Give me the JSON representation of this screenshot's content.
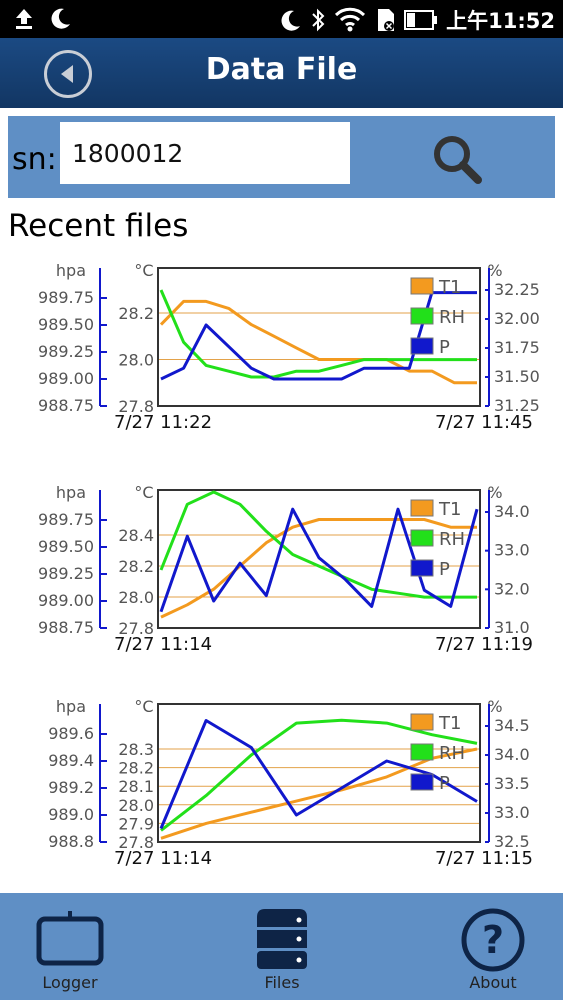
{
  "status_bar": {
    "time": "上午11:52"
  },
  "header": {
    "title": "Data File"
  },
  "search": {
    "label": "sn:",
    "value": "1800012"
  },
  "recent": {
    "title": "Recent files"
  },
  "charts": [
    {
      "left_axis_unit": "hpa",
      "mid_axis_unit": "°C",
      "right_axis_unit": "%",
      "p_ticks": [
        "989.75",
        "989.50",
        "989.25",
        "989.00",
        "988.75"
      ],
      "t_ticks": [
        "28.2",
        "28.0",
        "27.8"
      ],
      "rh_ticks": [
        "32.25",
        "32.00",
        "31.75",
        "31.50",
        "31.25"
      ],
      "legend": [
        "T1",
        "RH",
        "P"
      ],
      "start": "7/27 11:22",
      "end": "7/27 11:45"
    },
    {
      "left_axis_unit": "hpa",
      "mid_axis_unit": "°C",
      "right_axis_unit": "%",
      "p_ticks": [
        "989.75",
        "989.50",
        "989.25",
        "989.00",
        "988.75"
      ],
      "t_ticks": [
        "28.4",
        "28.2",
        "28.0",
        "27.8"
      ],
      "rh_ticks": [
        "34.0",
        "33.0",
        "32.0",
        "31.0"
      ],
      "legend": [
        "T1",
        "RH",
        "P"
      ],
      "start": "7/27 11:14",
      "end": "7/27 11:19"
    },
    {
      "left_axis_unit": "hpa",
      "mid_axis_unit": "°C",
      "right_axis_unit": "%",
      "p_ticks": [
        "989.6",
        "989.4",
        "989.2",
        "989.0",
        "988.8"
      ],
      "t_ticks": [
        "28.3",
        "28.2",
        "28.1",
        "28.0",
        "27.9",
        "27.8"
      ],
      "rh_ticks": [
        "34.5",
        "34.0",
        "33.5",
        "33.0",
        "32.5"
      ],
      "legend": [
        "T1",
        "RH",
        "P"
      ],
      "start": "7/27 11:14",
      "end": "7/27 11:15"
    }
  ],
  "chart_data": [
    {
      "type": "line",
      "series": [
        {
          "name": "T1",
          "color": "#f39a1f",
          "axis": "°C",
          "values": [
            28.15,
            28.25,
            28.25,
            28.22,
            28.15,
            28.1,
            28.05,
            28.0,
            28.0,
            28.0,
            28.0,
            27.95,
            27.95,
            27.9,
            27.9
          ]
        },
        {
          "name": "RH",
          "color": "#22e01a",
          "axis": "%",
          "values": [
            32.25,
            31.8,
            31.6,
            31.55,
            31.5,
            31.5,
            31.55,
            31.55,
            31.6,
            31.65,
            31.65,
            31.65,
            31.65,
            31.65,
            31.65
          ]
        },
        {
          "name": "P",
          "color": "#1118cc",
          "axis": "hpa",
          "values": [
            989.0,
            989.1,
            989.5,
            989.3,
            989.1,
            989.0,
            989.0,
            989.0,
            989.0,
            989.1,
            989.1,
            989.1,
            989.8,
            989.8,
            989.8
          ]
        }
      ]
    },
    {
      "type": "line",
      "series": [
        {
          "name": "T1",
          "color": "#f39a1f",
          "axis": "°C",
          "values": [
            27.87,
            27.95,
            28.05,
            28.2,
            28.35,
            28.45,
            28.5,
            28.5,
            28.5,
            28.5,
            28.5,
            28.45,
            28.45
          ]
        },
        {
          "name": "RH",
          "color": "#22e01a",
          "axis": "%",
          "values": [
            32.5,
            34.2,
            34.7,
            34.2,
            33.5,
            32.9,
            32.6,
            32.3,
            32.0,
            31.9,
            31.8,
            31.8,
            31.8
          ]
        },
        {
          "name": "P",
          "color": "#1118cc",
          "axis": "hpa",
          "values": [
            988.9,
            989.6,
            989.0,
            989.35,
            989.05,
            989.85,
            989.4,
            989.2,
            988.95,
            989.85,
            989.1,
            988.95,
            989.85
          ]
        }
      ]
    },
    {
      "type": "line",
      "series": [
        {
          "name": "T1",
          "color": "#f39a1f",
          "axis": "°C",
          "values": [
            27.82,
            27.9,
            27.96,
            28.02,
            28.08,
            28.15,
            28.25,
            28.3
          ]
        },
        {
          "name": "RH",
          "color": "#22e01a",
          "axis": "%",
          "values": [
            32.7,
            33.3,
            34.0,
            34.55,
            34.6,
            34.55,
            34.35,
            34.2
          ]
        },
        {
          "name": "P",
          "color": "#1118cc",
          "axis": "hpa",
          "values": [
            988.9,
            989.7,
            989.5,
            989.0,
            989.2,
            989.4,
            989.3,
            989.1
          ]
        }
      ]
    }
  ],
  "nav": {
    "logger": "Logger",
    "files": "Files",
    "about": "About"
  }
}
